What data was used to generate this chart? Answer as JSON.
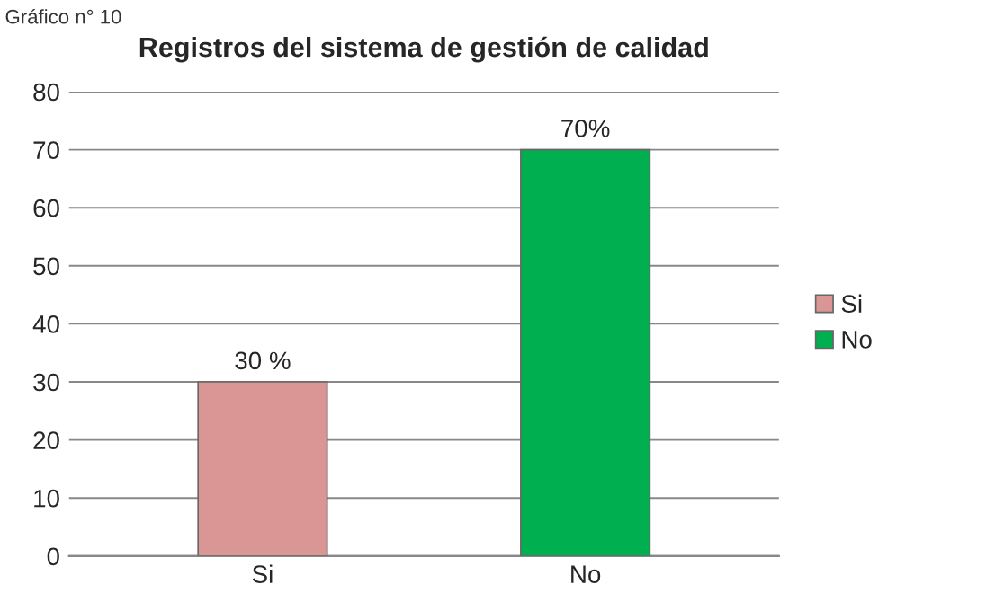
{
  "chart_data": {
    "type": "bar",
    "title": "Registros del sistema de gestión de calidad",
    "annotations": [
      "Gráfico n° 10"
    ],
    "categories": [
      "Si",
      "No"
    ],
    "series": [
      {
        "name": "Si",
        "color": "#d99694",
        "values": [
          30,
          null
        ],
        "value_labels": [
          "30 %",
          null
        ]
      },
      {
        "name": "No",
        "color": "#00b050",
        "values": [
          null,
          70
        ],
        "value_labels": [
          null,
          "70%"
        ]
      }
    ],
    "ylim": [
      0,
      80
    ],
    "yticks": [
      0,
      10,
      20,
      30,
      40,
      50,
      60,
      70,
      80
    ],
    "grid": "y",
    "legend": "right"
  }
}
